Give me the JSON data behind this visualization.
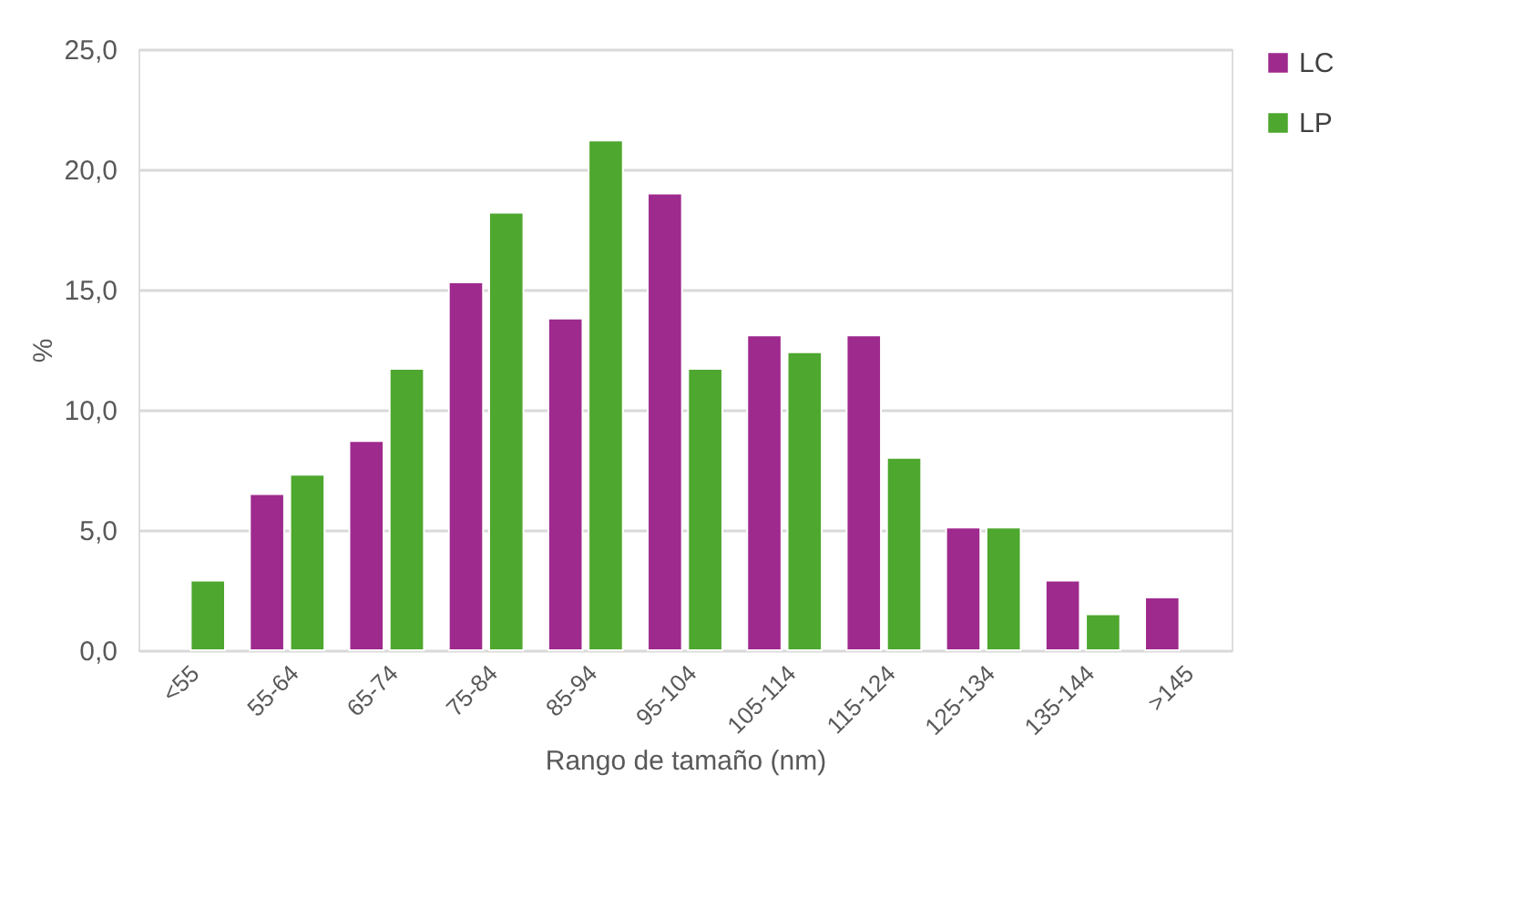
{
  "chart_data": {
    "type": "bar",
    "xlabel": "Rango de tamaño (nm)",
    "ylabel": "%",
    "categories": [
      "<55",
      "55-64",
      "65-74",
      "75-84",
      "85-94",
      "95-104",
      "105-114",
      "115-124",
      "125-134",
      "135-144",
      ">145"
    ],
    "series": [
      {
        "name": "LC",
        "color": "#9e2a8e",
        "values": [
          null,
          6.5,
          8.7,
          15.3,
          13.8,
          19.0,
          13.1,
          13.1,
          5.1,
          2.9,
          2.2
        ]
      },
      {
        "name": "LP",
        "color": "#4ea72e",
        "values": [
          2.9,
          7.3,
          11.7,
          18.2,
          21.2,
          11.7,
          12.4,
          8.0,
          5.1,
          1.5,
          null
        ]
      }
    ],
    "ylim": [
      0,
      25
    ],
    "yticks": [
      {
        "value": 0,
        "label": "0,0"
      },
      {
        "value": 5,
        "label": "5,0"
      },
      {
        "value": 10,
        "label": "10,0"
      },
      {
        "value": 15,
        "label": "15,0"
      },
      {
        "value": 20,
        "label": "20,0"
      },
      {
        "value": 25,
        "label": "25,0"
      }
    ],
    "grid": "y",
    "legend": "right"
  }
}
